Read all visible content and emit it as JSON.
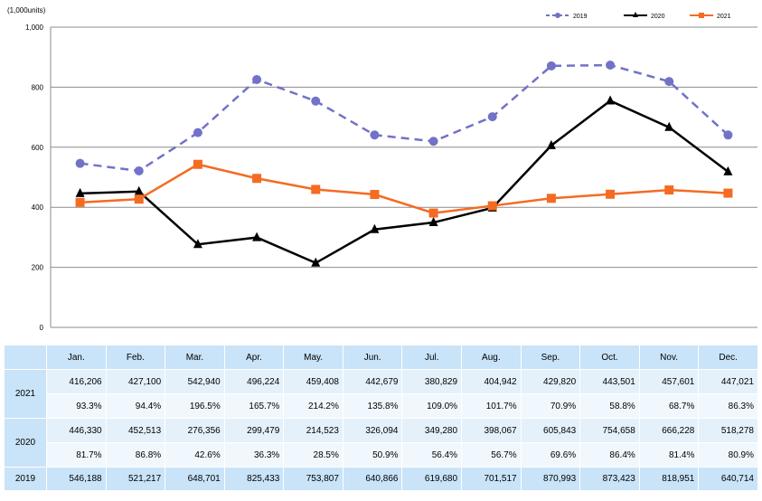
{
  "chart_data": {
    "type": "line",
    "unit_label": "(1,000units)",
    "ylim": [
      0,
      1000
    ],
    "yticks": [
      "0",
      "200",
      "400",
      "600",
      "800",
      "1,000"
    ],
    "legend_position": "top-right",
    "grid": true,
    "categories": [
      "Jan.",
      "Feb.",
      "Mar.",
      "Apr.",
      "May.",
      "Jun.",
      "Jul.",
      "Aug.",
      "Sep.",
      "Oct.",
      "Nov.",
      "Dec."
    ],
    "series": [
      {
        "name": "2019",
        "color": "#7272c8",
        "style": "dashed",
        "marker": "circle",
        "values": [
          546.188,
          521.217,
          648.701,
          825.433,
          753.807,
          640.866,
          619.68,
          701.517,
          870.993,
          873.423,
          818.951,
          640.714
        ]
      },
      {
        "name": "2020",
        "color": "#000000",
        "style": "solid",
        "marker": "triangle",
        "values": [
          446.33,
          452.513,
          276.356,
          299.479,
          214.523,
          326.094,
          349.28,
          398.067,
          605.843,
          754.658,
          666.228,
          518.278
        ]
      },
      {
        "name": "2021",
        "color": "#f46b22",
        "style": "solid",
        "marker": "square",
        "values": [
          416.206,
          427.1,
          542.94,
          496.224,
          459.408,
          442.679,
          380.829,
          404.942,
          429.82,
          443.501,
          457.601,
          447.021
        ]
      }
    ]
  },
  "table": {
    "months": [
      "Jan.",
      "Feb.",
      "Mar.",
      "Apr.",
      "May.",
      "Jun.",
      "Jul.",
      "Aug.",
      "Sep.",
      "Oct.",
      "Nov.",
      "Dec."
    ],
    "rows": [
      {
        "year": "2021",
        "values": [
          "416,206",
          "427,100",
          "542,940",
          "496,224",
          "459,408",
          "442,679",
          "380,829",
          "404,942",
          "429,820",
          "443,501",
          "457,601",
          "447,021"
        ],
        "pct": [
          "93.3%",
          "94.4%",
          "196.5%",
          "165.7%",
          "214.2%",
          "135.8%",
          "109.0%",
          "101.7%",
          "70.9%",
          "58.8%",
          "68.7%",
          "86.3%"
        ]
      },
      {
        "year": "2020",
        "values": [
          "446,330",
          "452,513",
          "276,356",
          "299,479",
          "214,523",
          "326,094",
          "349,280",
          "398,067",
          "605,843",
          "754,658",
          "666,228",
          "518,278"
        ],
        "pct": [
          "81.7%",
          "86.8%",
          "42.6%",
          "36.3%",
          "28.5%",
          "50.9%",
          "56.4%",
          "56.7%",
          "69.6%",
          "86.4%",
          "81.4%",
          "80.9%"
        ]
      },
      {
        "year": "2019",
        "values": [
          "546,188",
          "521,217",
          "648,701",
          "825,433",
          "753,807",
          "640,866",
          "619,680",
          "701,517",
          "870,993",
          "873,423",
          "818,951",
          "640,714"
        ]
      }
    ]
  }
}
